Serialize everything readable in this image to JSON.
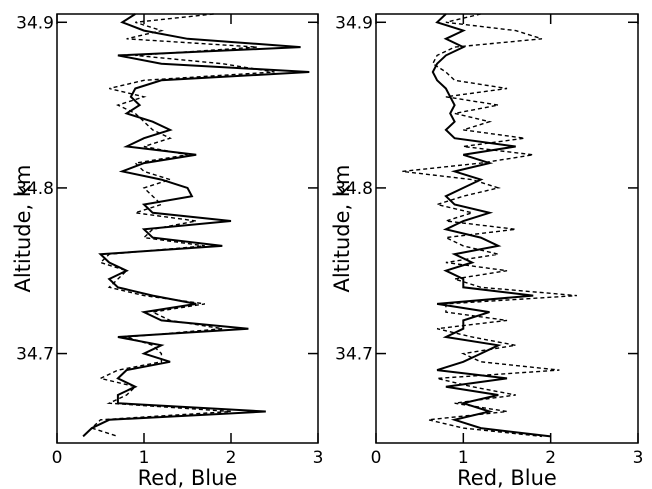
{
  "chart_data": [
    {
      "type": "line",
      "xlabel": "Red, Blue",
      "ylabel": "Altitude, km",
      "xlim": [
        0,
        3
      ],
      "xticks": [
        0,
        1,
        2,
        3
      ],
      "ylim": [
        34.646,
        34.905
      ],
      "yticks": [
        34.7,
        34.8,
        34.9
      ],
      "y": [
        34.905,
        34.9,
        34.895,
        34.89,
        34.885,
        34.88,
        34.875,
        34.87,
        34.865,
        34.86,
        34.855,
        34.85,
        34.845,
        34.84,
        34.835,
        34.83,
        34.825,
        34.82,
        34.815,
        34.81,
        34.805,
        34.8,
        34.795,
        34.79,
        34.785,
        34.78,
        34.775,
        34.77,
        34.765,
        34.76,
        34.755,
        34.75,
        34.745,
        34.74,
        34.735,
        34.73,
        34.725,
        34.72,
        34.715,
        34.71,
        34.705,
        34.7,
        34.695,
        34.69,
        34.685,
        34.68,
        34.675,
        34.67,
        34.665,
        34.66,
        34.655,
        34.65
      ],
      "series": [
        {
          "color": "#000000",
          "dash": false,
          "values": [
            0.9,
            0.75,
            1.0,
            1.5,
            2.8,
            0.7,
            1.2,
            2.9,
            1.2,
            0.9,
            0.85,
            0.95,
            0.8,
            1.1,
            1.3,
            1.0,
            0.8,
            1.6,
            1.0,
            0.75,
            1.2,
            1.5,
            1.55,
            1.0,
            1.1,
            2.0,
            1.0,
            1.1,
            1.9,
            0.5,
            0.6,
            0.8,
            0.6,
            0.7,
            1.1,
            1.6,
            1.0,
            1.2,
            2.2,
            0.7,
            1.2,
            1.0,
            1.3,
            0.8,
            0.7,
            0.9,
            0.7,
            0.7,
            2.4,
            0.6,
            0.4,
            0.3
          ]
        },
        {
          "color": "#000000",
          "dash": true,
          "values": [
            1.8,
            0.9,
            1.2,
            0.8,
            2.3,
            0.9,
            1.9,
            2.5,
            1.0,
            0.6,
            1.0,
            0.7,
            0.9,
            1.0,
            1.1,
            1.3,
            1.0,
            1.5,
            0.9,
            1.0,
            1.3,
            1.0,
            1.1,
            1.2,
            0.9,
            1.6,
            1.1,
            1.0,
            1.7,
            0.6,
            0.5,
            0.8,
            0.7,
            0.6,
            1.0,
            1.7,
            1.1,
            1.3,
            1.9,
            0.8,
            1.1,
            1.2,
            1.2,
            0.7,
            0.5,
            0.9,
            0.8,
            0.6,
            2.0,
            0.5,
            0.4,
            0.7
          ]
        }
      ]
    },
    {
      "type": "line",
      "xlabel": "Red, Blue",
      "ylabel": "Altitude, km",
      "xlim": [
        0,
        3
      ],
      "xticks": [
        0,
        1,
        2,
        3
      ],
      "ylim": [
        34.646,
        34.905
      ],
      "yticks": [
        34.7,
        34.8,
        34.9
      ],
      "y": [
        34.905,
        34.9,
        34.895,
        34.89,
        34.885,
        34.88,
        34.875,
        34.87,
        34.865,
        34.86,
        34.855,
        34.85,
        34.845,
        34.84,
        34.835,
        34.83,
        34.825,
        34.82,
        34.815,
        34.81,
        34.805,
        34.8,
        34.795,
        34.79,
        34.785,
        34.78,
        34.775,
        34.77,
        34.765,
        34.76,
        34.755,
        34.75,
        34.745,
        34.74,
        34.735,
        34.73,
        34.725,
        34.72,
        34.715,
        34.71,
        34.705,
        34.7,
        34.695,
        34.69,
        34.685,
        34.68,
        34.675,
        34.67,
        34.665,
        34.66,
        34.655,
        34.65
      ],
      "series": [
        {
          "color": "#000000",
          "dash": false,
          "values": [
            0.8,
            0.7,
            1.0,
            0.8,
            1.0,
            0.8,
            0.7,
            0.65,
            0.7,
            0.8,
            0.85,
            0.9,
            0.85,
            0.9,
            0.8,
            0.9,
            1.6,
            1.0,
            1.3,
            0.9,
            1.2,
            1.0,
            0.8,
            0.9,
            1.3,
            1.0,
            0.8,
            1.2,
            1.4,
            0.9,
            1.1,
            0.8,
            1.0,
            1.0,
            1.8,
            0.7,
            1.3,
            1.0,
            1.0,
            0.8,
            1.4,
            1.2,
            1.0,
            0.7,
            1.5,
            0.8,
            1.4,
            1.0,
            1.3,
            0.9,
            1.2,
            2.0
          ]
        },
        {
          "color": "#000000",
          "dash": true,
          "values": [
            1.2,
            0.8,
            1.6,
            1.9,
            0.9,
            0.7,
            0.65,
            0.8,
            0.9,
            1.5,
            0.8,
            1.4,
            0.9,
            1.3,
            1.0,
            1.7,
            1.0,
            1.8,
            1.2,
            0.3,
            1.1,
            1.4,
            1.0,
            0.7,
            1.1,
            0.8,
            1.6,
            0.8,
            1.0,
            1.4,
            0.8,
            1.5,
            0.9,
            1.2,
            2.3,
            0.8,
            0.8,
            1.5,
            0.7,
            1.1,
            1.6,
            1.0,
            1.2,
            2.1,
            0.7,
            1.1,
            1.6,
            0.9,
            1.5,
            0.6,
            1.0,
            1.9
          ]
        }
      ]
    }
  ]
}
